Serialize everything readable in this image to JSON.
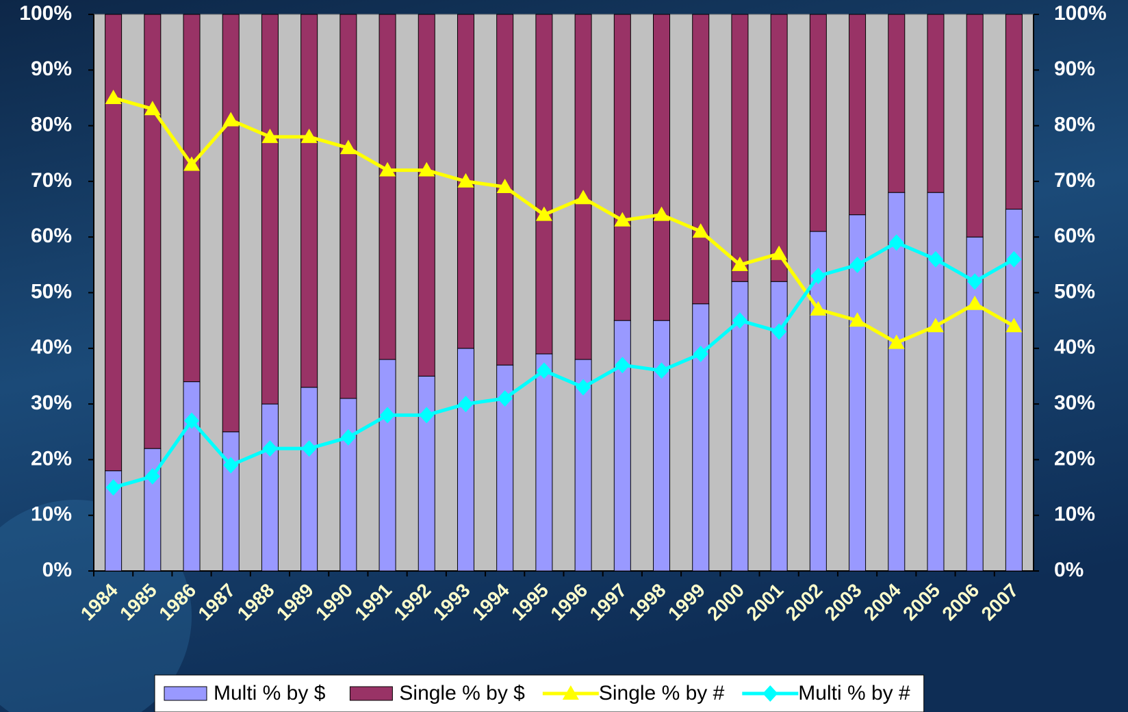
{
  "chart_data": {
    "type": "stacked-bar-line",
    "categories": [
      "1984",
      "1985",
      "1986",
      "1987",
      "1988",
      "1989",
      "1990",
      "1991",
      "1992",
      "1993",
      "1994",
      "1995",
      "1996",
      "1997",
      "1998",
      "1999",
      "2000",
      "2001",
      "2002",
      "2003",
      "2004",
      "2005",
      "2006",
      "2007"
    ],
    "series": [
      {
        "name": "Multi % by $",
        "type": "bar",
        "color": "#9999ff",
        "values": [
          18,
          22,
          34,
          25,
          30,
          33,
          31,
          38,
          35,
          40,
          37,
          39,
          38,
          45,
          45,
          48,
          52,
          52,
          61,
          64,
          68,
          68,
          60,
          65
        ]
      },
      {
        "name": "Single % by $",
        "type": "bar",
        "color": "#993366",
        "values": [
          82,
          78,
          66,
          75,
          70,
          67,
          69,
          62,
          65,
          60,
          63,
          61,
          62,
          55,
          55,
          52,
          48,
          48,
          39,
          36,
          32,
          32,
          40,
          35
        ]
      },
      {
        "name": "Single % by #",
        "type": "line",
        "axis": "y2",
        "marker": "triangle",
        "color": "#ffff00",
        "values": [
          85,
          83,
          73,
          81,
          78,
          78,
          76,
          72,
          72,
          70,
          69,
          64,
          67,
          63,
          64,
          61,
          55,
          57,
          47,
          45,
          41,
          44,
          48,
          44
        ]
      },
      {
        "name": "Multi % by #",
        "type": "line",
        "axis": "y2",
        "marker": "diamond",
        "color": "#00ffff",
        "values": [
          15,
          17,
          27,
          19,
          22,
          22,
          24,
          28,
          28,
          30,
          31,
          36,
          33,
          37,
          36,
          39,
          45,
          43,
          53,
          55,
          59,
          56,
          52,
          56
        ]
      }
    ],
    "ylim": [
      0,
      100
    ],
    "yticks": [
      {
        "value": 0,
        "label": "0%"
      },
      {
        "value": 10,
        "label": "10%"
      },
      {
        "value": 20,
        "label": "20%"
      },
      {
        "value": 30,
        "label": "30%"
      },
      {
        "value": 40,
        "label": "40%"
      },
      {
        "value": 50,
        "label": "50%"
      },
      {
        "value": 60,
        "label": "60%"
      },
      {
        "value": 70,
        "label": "70%"
      },
      {
        "value": 80,
        "label": "80%"
      },
      {
        "value": 90,
        "label": "90%"
      },
      {
        "value": 100,
        "label": "100%"
      }
    ],
    "y2lim": [
      0,
      100
    ],
    "y2ticks": [
      {
        "value": 0,
        "label": "0%"
      },
      {
        "value": 10,
        "label": "10%"
      },
      {
        "value": 20,
        "label": "20%"
      },
      {
        "value": 30,
        "label": "30%"
      },
      {
        "value": 40,
        "label": "40%"
      },
      {
        "value": 50,
        "label": "50%"
      },
      {
        "value": 60,
        "label": "60%"
      },
      {
        "value": 70,
        "label": "70%"
      },
      {
        "value": 80,
        "label": "80%"
      },
      {
        "value": 90,
        "label": "90%"
      },
      {
        "value": 100,
        "label": "100%"
      }
    ],
    "legend": "bottom"
  }
}
